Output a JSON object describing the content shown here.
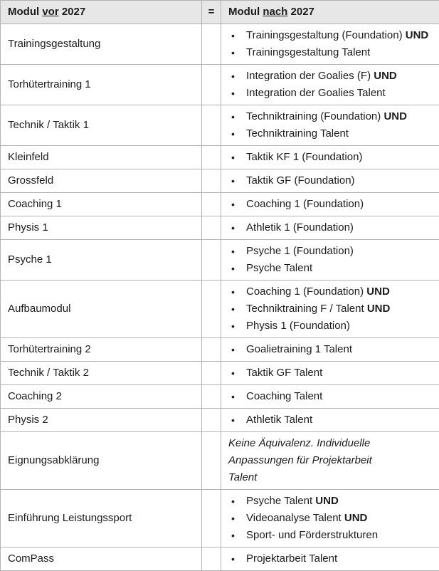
{
  "table": {
    "colors": {
      "header_bg": "#e7e7e7",
      "border": "#b3b3b3",
      "text": "#1b1b1b"
    },
    "header": {
      "col_old": {
        "pre": "Modul ",
        "underlined": "vor",
        "post": " 2027"
      },
      "equals": "=",
      "col_new": {
        "pre": "Modul ",
        "underlined": "nach",
        "post": " 2027"
      }
    },
    "rows": [
      {
        "old": "Trainingsgestaltung",
        "new": [
          {
            "text": "Trainingsgestaltung (Foundation)",
            "bold": "UND"
          },
          {
            "text": "Trainingsgestaltung Talent",
            "bold": ""
          }
        ]
      },
      {
        "old": "Torhütertraining 1",
        "new": [
          {
            "text": "Integration der Goalies (F)",
            "bold": "UND"
          },
          {
            "text": "Integration der Goalies Talent",
            "bold": ""
          }
        ]
      },
      {
        "old": "Technik / Taktik 1",
        "new": [
          {
            "text": "Techniktraining (Foundation)",
            "bold": "UND"
          },
          {
            "text": "Techniktraining Talent",
            "bold": ""
          }
        ]
      },
      {
        "old": "Kleinfeld",
        "new": [
          {
            "text": "Taktik KF 1 (Foundation)",
            "bold": ""
          }
        ]
      },
      {
        "old": "Grossfeld",
        "new": [
          {
            "text": "Taktik GF (Foundation)",
            "bold": ""
          }
        ]
      },
      {
        "old": "Coaching 1",
        "new": [
          {
            "text": "Coaching 1 (Foundation)",
            "bold": ""
          }
        ]
      },
      {
        "old": "Physis 1",
        "new": [
          {
            "text": "Athletik 1 (Foundation)",
            "bold": ""
          }
        ]
      },
      {
        "old": "Psyche 1",
        "new": [
          {
            "text": "Psyche 1 (Foundation)",
            "bold": ""
          },
          {
            "text": "Psyche Talent",
            "bold": ""
          }
        ]
      },
      {
        "old": "Aufbaumodul",
        "new": [
          {
            "text": "Coaching 1 (Foundation)",
            "bold": "UND"
          },
          {
            "text": "Techniktraining F / Talent",
            "bold": "UND"
          },
          {
            "text": "Physis 1 (Foundation)",
            "bold": ""
          }
        ]
      },
      {
        "old": "Torhütertraining 2",
        "new": [
          {
            "text": "Goalietraining 1 Talent",
            "bold": ""
          }
        ]
      },
      {
        "old": "Technik / Taktik 2",
        "new": [
          {
            "text": "Taktik GF Talent",
            "bold": ""
          }
        ]
      },
      {
        "old": "Coaching 2",
        "new": [
          {
            "text": "Coaching Talent",
            "bold": ""
          }
        ]
      },
      {
        "old": "Physis 2",
        "new": [
          {
            "text": "Athletik Talent",
            "bold": ""
          }
        ]
      },
      {
        "old": "Eignungsabklärung",
        "note": "Keine Äquivalenz. Individuelle Anpassungen für Projektarbeit Talent"
      },
      {
        "old": "Einführung Leistungssport",
        "new": [
          {
            "text": "Psyche Talent",
            "bold": "UND"
          },
          {
            "text": "Videoanalyse Talent",
            "bold": "UND"
          },
          {
            "text": "Sport- und Förderstrukturen",
            "bold": ""
          }
        ]
      },
      {
        "old": "ComPass",
        "new": [
          {
            "text": "Projektarbeit Talent",
            "bold": ""
          }
        ]
      }
    ]
  }
}
